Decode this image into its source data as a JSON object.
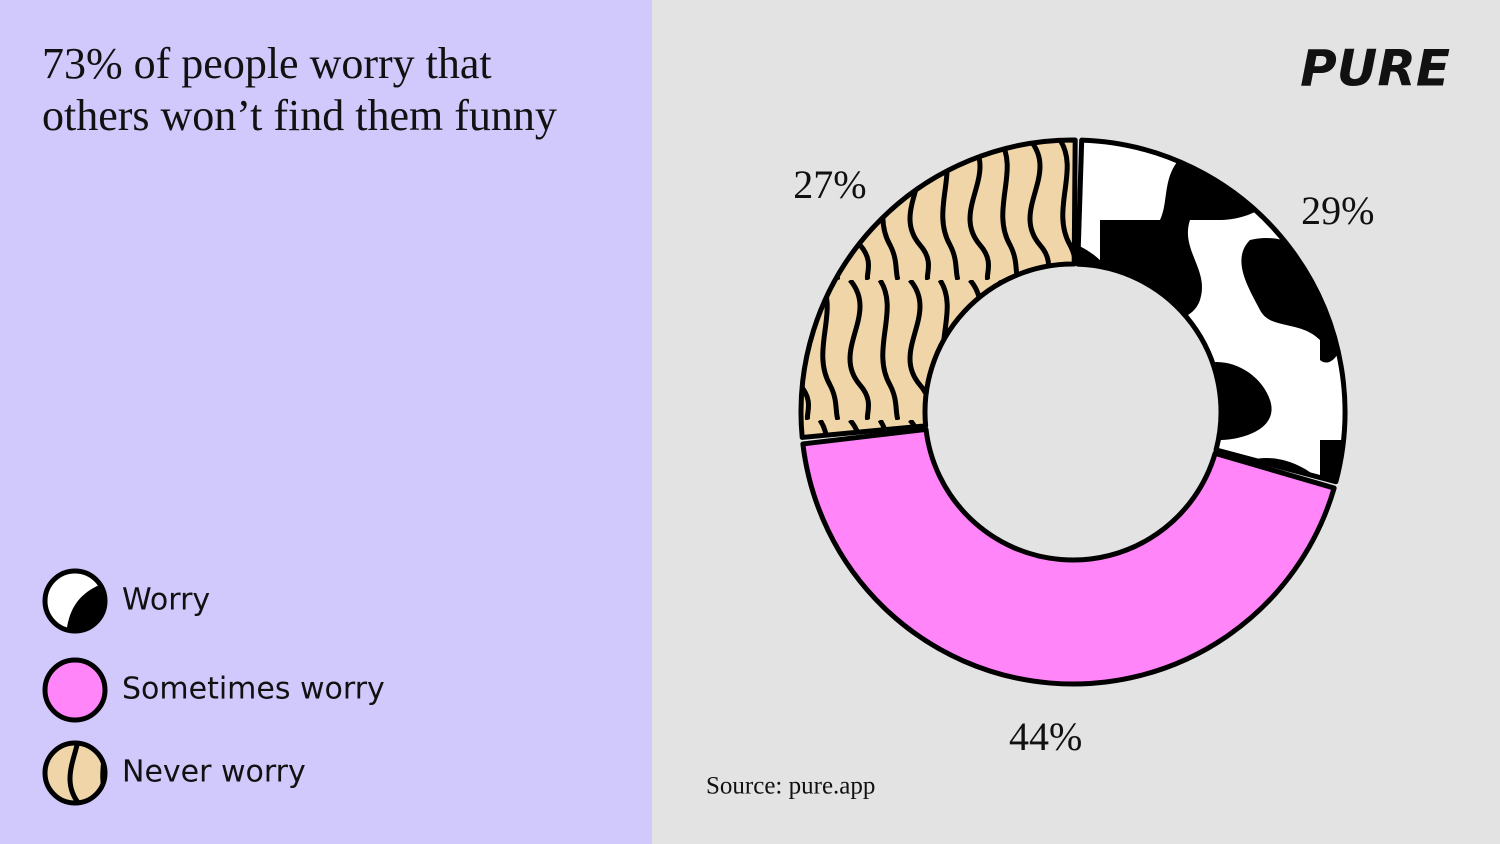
{
  "chart_data": {
    "type": "donut",
    "title": "73% of people worry that others won’t find them funny",
    "brand": "PURE",
    "source": "Source: pure.app",
    "categories": [
      "Worry",
      "Sometimes worry",
      "Never worry"
    ],
    "values": [
      29,
      44,
      27
    ],
    "value_labels": [
      "29%",
      "44%",
      "27%"
    ],
    "colors": [
      "#ffffff",
      "#ff85f8",
      "#efd5a8"
    ],
    "legend": "bottom-left"
  }
}
